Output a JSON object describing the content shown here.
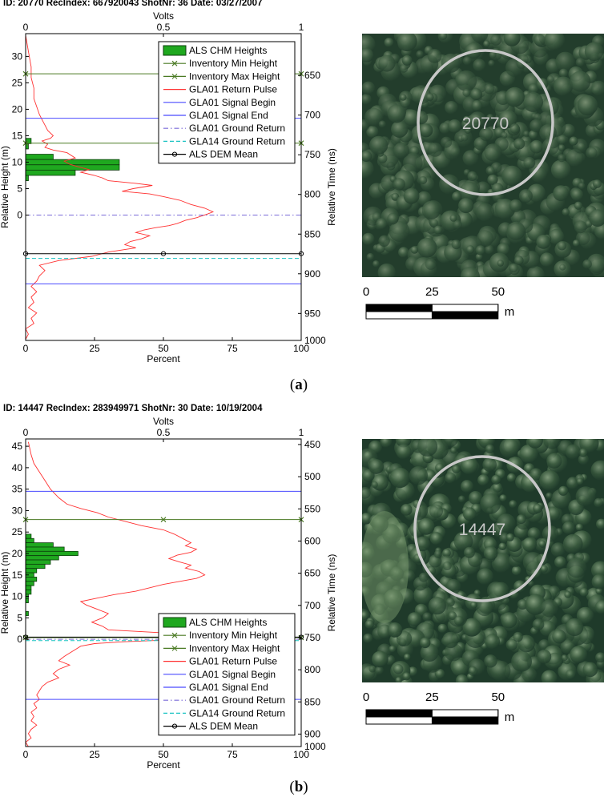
{
  "panels": [
    {
      "id": "a",
      "title": "ID: 20770 RecIndex: 667920043 ShotNr: 36 Date: 03/27/2007",
      "panel_label_prefix": "(",
      "panel_label_letter": "a",
      "panel_label_suffix": ")",
      "photo_label": "20770",
      "photo_colors": {
        "base": "#233d2c",
        "mid": "#3c5a40",
        "light": "#7a9073",
        "circle": "#c8c8c8"
      }
    },
    {
      "id": "b",
      "title": "ID: 14447 RecIndex: 283949971 ShotNr: 30 Date: 10/19/2004",
      "panel_label_prefix": "(",
      "panel_label_letter": "b",
      "panel_label_suffix": ")",
      "photo_label": "14447",
      "photo_colors": {
        "base": "#1f3a2a",
        "mid": "#3a5a3e",
        "light": "#8aa483",
        "circle": "#c8c8c8"
      }
    }
  ],
  "scalebar": {
    "ticks": [
      "0",
      "25",
      "50"
    ],
    "unit": "m"
  },
  "legend_items": [
    {
      "label": "ALS CHM Heights",
      "kind": "patch",
      "color": "#1fa81f"
    },
    {
      "label": "Inventory Min Height",
      "kind": "xline",
      "color": "#4a7a23"
    },
    {
      "label": "Inventory Max Height",
      "kind": "xline",
      "color": "#4a7a23"
    },
    {
      "label": "GLA01 Return Pulse",
      "kind": "line",
      "color": "#ff3030"
    },
    {
      "label": "GLA01 Signal Begin",
      "kind": "line",
      "color": "#4a4aff"
    },
    {
      "label": "GLA01 Signal End",
      "kind": "line",
      "color": "#4a4aff"
    },
    {
      "label": "GLA01 Ground Return",
      "kind": "dashdot",
      "color": "#7a6ad8"
    },
    {
      "label": "GLA14 Ground Return",
      "kind": "dashed",
      "color": "#19c2c2"
    },
    {
      "label": "ALS DEM Mean",
      "kind": "oline",
      "color": "#000000"
    }
  ],
  "chart_data": [
    {
      "type": "line",
      "xlabel": "Percent",
      "x_top_label": "Volts",
      "ylabel": "Relative Height (m)",
      "y_right_label": "Relative Time (ns)",
      "xlim": [
        0,
        100
      ],
      "x_ticks": [
        "0",
        "25",
        "50",
        "75",
        "100"
      ],
      "top_ticks": [
        "0",
        "0.5",
        "1"
      ],
      "ylim": [
        -23.7,
        34.3
      ],
      "y_ticks": [
        0,
        5,
        10,
        15,
        20,
        25,
        30
      ],
      "right_ticks": [
        "650",
        "700",
        "750",
        "800",
        "850",
        "900",
        "950",
        "1000"
      ],
      "right_tick_heights": [
        26.4,
        18.9,
        11.4,
        3.9,
        -3.6,
        -11.1,
        -18.6,
        -26.1
      ],
      "legend_position": "top-right",
      "chm_bars": [
        {
          "h": 14,
          "pct": 2
        },
        {
          "h": 13,
          "pct": 1
        },
        {
          "h": 11,
          "pct": 10
        },
        {
          "h": 10,
          "pct": 34
        },
        {
          "h": 9,
          "pct": 34
        },
        {
          "h": 8,
          "pct": 18
        },
        {
          "h": 7,
          "pct": 1
        }
      ],
      "chm_bin_width": 1,
      "inventory_min_height": 13.6,
      "inventory_max_height": 26.7,
      "signal_begin": 18.3,
      "signal_end": -13.0,
      "gla01_ground_return": 0,
      "gla14_ground_return": -8.2,
      "als_dem_mean": -7.3,
      "return_pulse_volts": [
        [
          0.0,
          34
        ],
        [
          0.01,
          31
        ],
        [
          0.02,
          28
        ],
        [
          0.02,
          26
        ],
        [
          0.03,
          24
        ],
        [
          0.03,
          22
        ],
        [
          0.04,
          20.5
        ],
        [
          0.05,
          19
        ],
        [
          0.06,
          18
        ],
        [
          0.07,
          17
        ],
        [
          0.08,
          16
        ],
        [
          0.1,
          15
        ],
        [
          0.09,
          14.5
        ],
        [
          0.06,
          14
        ],
        [
          0.08,
          13.4
        ],
        [
          0.07,
          12.8
        ],
        [
          0.1,
          12.3
        ],
        [
          0.15,
          11.8
        ],
        [
          0.18,
          10.8
        ],
        [
          0.14,
          10.2
        ],
        [
          0.16,
          9.6
        ],
        [
          0.2,
          9
        ],
        [
          0.23,
          8.6
        ],
        [
          0.2,
          8.1
        ],
        [
          0.25,
          7.5
        ],
        [
          0.28,
          7
        ],
        [
          0.3,
          6.5
        ],
        [
          0.4,
          6
        ],
        [
          0.46,
          5.6
        ],
        [
          0.39,
          5
        ],
        [
          0.35,
          4.5
        ],
        [
          0.45,
          4
        ],
        [
          0.5,
          3.5
        ],
        [
          0.56,
          2.8
        ],
        [
          0.6,
          2
        ],
        [
          0.65,
          1.3
        ],
        [
          0.68,
          0.6
        ],
        [
          0.66,
          0.2
        ],
        [
          0.62,
          -0.5
        ],
        [
          0.58,
          -1
        ],
        [
          0.55,
          -1.6
        ],
        [
          0.52,
          -2
        ],
        [
          0.47,
          -2.4
        ],
        [
          0.43,
          -2.8
        ],
        [
          0.4,
          -3.3
        ],
        [
          0.45,
          -3.9
        ],
        [
          0.42,
          -4.5
        ],
        [
          0.38,
          -5
        ],
        [
          0.36,
          -5.6
        ],
        [
          0.4,
          -6.2
        ],
        [
          0.3,
          -7
        ],
        [
          0.24,
          -7.8
        ],
        [
          0.12,
          -8.6
        ],
        [
          0.05,
          -9.5
        ],
        [
          0.07,
          -10.5
        ],
        [
          0.05,
          -11.5
        ],
        [
          0.04,
          -12.5
        ],
        [
          0.02,
          -13.5
        ],
        [
          0.04,
          -14.5
        ],
        [
          0.02,
          -15.5
        ],
        [
          0.03,
          -16.5
        ],
        [
          0.01,
          -17.5
        ],
        [
          0.04,
          -18.5
        ],
        [
          0.02,
          -19.5
        ],
        [
          0.03,
          -20.5
        ],
        [
          0.0,
          -21.5
        ],
        [
          0.01,
          -22.5
        ],
        [
          0.0,
          -23.5
        ]
      ]
    },
    {
      "type": "line",
      "xlabel": "Percent",
      "x_top_label": "Volts",
      "ylabel": "Relative Height (m)",
      "y_right_label": "Relative Time (ns)",
      "xlim": [
        0,
        100
      ],
      "x_ticks": [
        "0",
        "25",
        "50",
        "75",
        "100"
      ],
      "top_ticks": [
        "0",
        "0.5",
        "1"
      ],
      "ylim": [
        -25.0,
        46.7
      ],
      "y_ticks": [
        0,
        5,
        10,
        15,
        20,
        25,
        30,
        35,
        40,
        45
      ],
      "right_ticks": [
        "450",
        "500",
        "550",
        "600",
        "650",
        "700",
        "750",
        "800",
        "850",
        "900",
        "950",
        "1000"
      ],
      "right_tick_heights": [
        45.4,
        37.9,
        30.4,
        22.9,
        15.4,
        7.9,
        0.4,
        -7.1,
        -14.6,
        -22.1,
        -29.6,
        -37.1
      ],
      "legend_position": "bottom-right",
      "chm_bars": [
        {
          "h": 24,
          "pct": 2
        },
        {
          "h": 23,
          "pct": 3
        },
        {
          "h": 22,
          "pct": 10
        },
        {
          "h": 21,
          "pct": 14
        },
        {
          "h": 20,
          "pct": 19
        },
        {
          "h": 19,
          "pct": 12
        },
        {
          "h": 18,
          "pct": 9
        },
        {
          "h": 17,
          "pct": 7
        },
        {
          "h": 16,
          "pct": 4
        },
        {
          "h": 15,
          "pct": 3
        },
        {
          "h": 14,
          "pct": 4
        },
        {
          "h": 13,
          "pct": 3
        },
        {
          "h": 12,
          "pct": 2
        },
        {
          "h": 11,
          "pct": 2
        },
        {
          "h": 10,
          "pct": 1
        },
        {
          "h": 9,
          "pct": 1
        },
        {
          "h": 6,
          "pct": 1
        }
      ],
      "chm_bin_width": 1,
      "inventory_min_height": 0.4,
      "inventory_max_height": 27.9,
      "signal_begin": 34.5,
      "signal_end": -14.0,
      "gla01_ground_return": 0,
      "gla14_ground_return": -0.3,
      "als_dem_mean": 0.5,
      "return_pulse_volts": [
        [
          0.01,
          46
        ],
        [
          0.02,
          43
        ],
        [
          0.03,
          41
        ],
        [
          0.05,
          39
        ],
        [
          0.07,
          37
        ],
        [
          0.09,
          35
        ],
        [
          0.12,
          33
        ],
        [
          0.15,
          31.5
        ],
        [
          0.2,
          30.5
        ],
        [
          0.26,
          29.5
        ],
        [
          0.3,
          28.5
        ],
        [
          0.36,
          27.5
        ],
        [
          0.42,
          26.5
        ],
        [
          0.5,
          25.5
        ],
        [
          0.54,
          24.5
        ],
        [
          0.57,
          23.5
        ],
        [
          0.6,
          22.5
        ],
        [
          0.58,
          21.8
        ],
        [
          0.62,
          21
        ],
        [
          0.6,
          20.3
        ],
        [
          0.55,
          19.6
        ],
        [
          0.52,
          18.8
        ],
        [
          0.56,
          18
        ],
        [
          0.6,
          17.3
        ],
        [
          0.58,
          16.6
        ],
        [
          0.63,
          15.8
        ],
        [
          0.65,
          15
        ],
        [
          0.62,
          14.2
        ],
        [
          0.56,
          13.5
        ],
        [
          0.5,
          12.8
        ],
        [
          0.45,
          12
        ],
        [
          0.4,
          11.2
        ],
        [
          0.32,
          10.4
        ],
        [
          0.26,
          9.6
        ],
        [
          0.2,
          8.8
        ],
        [
          0.22,
          8
        ],
        [
          0.26,
          7
        ],
        [
          0.3,
          6
        ],
        [
          0.28,
          5
        ],
        [
          0.24,
          4
        ],
        [
          0.28,
          3
        ],
        [
          0.3,
          2.2
        ],
        [
          0.5,
          1.5
        ],
        [
          0.8,
          1
        ],
        [
          0.9,
          0.6
        ],
        [
          0.8,
          0.2
        ],
        [
          0.5,
          -0.2
        ],
        [
          0.35,
          -0.6
        ],
        [
          0.25,
          -1
        ],
        [
          0.2,
          -1.6
        ],
        [
          0.18,
          -2.4
        ],
        [
          0.16,
          -3.2
        ],
        [
          0.14,
          -4
        ],
        [
          0.12,
          -5
        ],
        [
          0.16,
          -6
        ],
        [
          0.12,
          -7
        ],
        [
          0.1,
          -8
        ],
        [
          0.12,
          -9
        ],
        [
          0.08,
          -10
        ],
        [
          0.06,
          -11
        ],
        [
          0.05,
          -12
        ],
        [
          0.04,
          -13
        ],
        [
          0.05,
          -14
        ],
        [
          0.03,
          -15
        ],
        [
          0.04,
          -16
        ],
        [
          0.02,
          -17
        ],
        [
          0.03,
          -18
        ],
        [
          0.02,
          -19
        ],
        [
          0.04,
          -20
        ],
        [
          0.02,
          -21
        ],
        [
          0.01,
          -22
        ],
        [
          0.02,
          -23
        ],
        [
          0.0,
          -24
        ],
        [
          0.01,
          -25
        ]
      ]
    }
  ]
}
